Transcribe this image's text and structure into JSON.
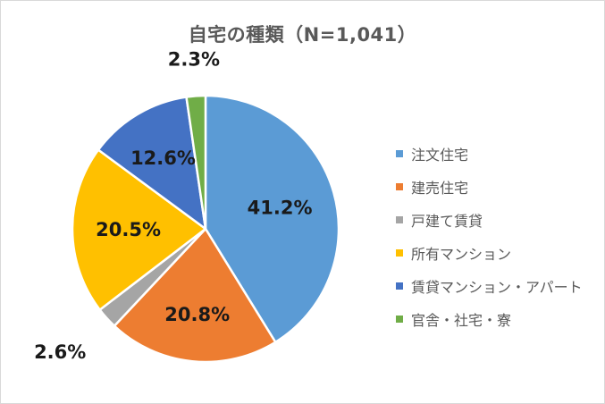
{
  "chart_data": {
    "type": "pie",
    "title": "自宅の種類（N=1,041）",
    "categories": [
      "注文住宅",
      "建売住宅",
      "戸建て賃貸",
      "所有マンション",
      "賃貸マンション・アパート",
      "官舎・社宅・寮"
    ],
    "values": [
      41.2,
      20.8,
      2.6,
      20.5,
      12.6,
      2.3
    ],
    "value_labels": [
      "41.2%",
      "20.8%",
      "2.6%",
      "20.5%",
      "12.6%",
      "2.3%"
    ],
    "colors": [
      "#5b9bd5",
      "#ed7d31",
      "#a5a5a5",
      "#ffc000",
      "#4472c4",
      "#70ad47"
    ],
    "start_angle": "12 o'clock",
    "direction": "clockwise",
    "legend_position": "right"
  }
}
